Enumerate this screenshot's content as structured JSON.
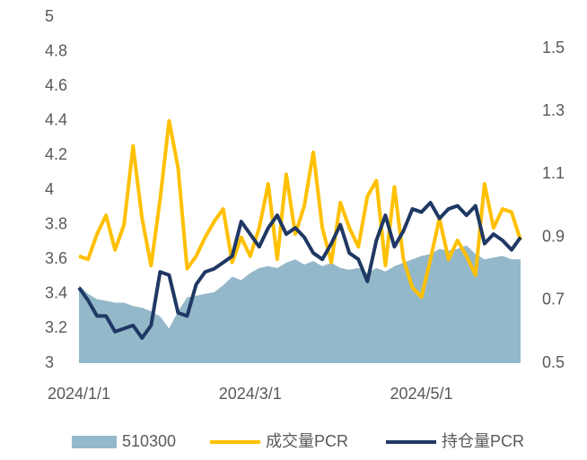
{
  "chart_data": {
    "type": "area-line",
    "categories": [
      "2024/1/1",
      null,
      null,
      null,
      null,
      null,
      null,
      null,
      null,
      null,
      null,
      null,
      null,
      null,
      null,
      null,
      null,
      null,
      null,
      "2024/3/1",
      null,
      null,
      null,
      null,
      null,
      null,
      null,
      null,
      null,
      null,
      null,
      null,
      null,
      null,
      null,
      null,
      null,
      null,
      "2024/5/1",
      null,
      null,
      null,
      null,
      null,
      null,
      null,
      null,
      null,
      null,
      null
    ],
    "ylim": [
      3,
      5
    ],
    "yticks": [
      3,
      3.2,
      3.4,
      3.6,
      3.8,
      4,
      4.2,
      4.4,
      4.6,
      4.8,
      5
    ],
    "y2lim": [
      0.5,
      1.6
    ],
    "y2ticks": [
      0.5,
      0.7,
      0.9,
      1.1,
      1.3,
      1.5
    ],
    "legend": "bottom",
    "series": [
      {
        "name": "510300",
        "type": "area",
        "color": "#93b8c9",
        "values": [
          3.45,
          3.4,
          3.37,
          3.36,
          3.35,
          3.35,
          3.33,
          3.32,
          3.3,
          3.27,
          3.2,
          3.3,
          3.38,
          3.39,
          3.4,
          3.41,
          3.45,
          3.5,
          3.48,
          3.52,
          3.55,
          3.56,
          3.55,
          3.58,
          3.6,
          3.57,
          3.59,
          3.56,
          3.58,
          3.55,
          3.54,
          3.55,
          3.52,
          3.55,
          3.53,
          3.56,
          3.58,
          3.6,
          3.62,
          3.63,
          3.66,
          3.65,
          3.66,
          3.68,
          3.63,
          3.6,
          3.61,
          3.62,
          3.6,
          3.6
        ]
      },
      {
        "name": "成交量PCR",
        "type": "line",
        "axis": "y2",
        "color": "#ffc000",
        "values": [
          0.84,
          0.83,
          0.91,
          0.97,
          0.86,
          0.94,
          1.19,
          0.96,
          0.81,
          1.02,
          1.27,
          1.12,
          0.8,
          0.84,
          0.9,
          0.95,
          0.99,
          0.82,
          0.9,
          0.84,
          0.93,
          1.07,
          0.83,
          1.1,
          0.91,
          1.0,
          1.17,
          0.93,
          0.82,
          1.01,
          0.93,
          0.87,
          1.03,
          1.08,
          0.81,
          1.06,
          0.83,
          0.74,
          0.71,
          0.83,
          0.96,
          0.83,
          0.89,
          0.84,
          0.78,
          1.07,
          0.93,
          0.99,
          0.98,
          0.89
        ]
      },
      {
        "name": "持仓量PCR",
        "type": "line",
        "axis": "y2",
        "color": "#1f3864",
        "values": [
          0.74,
          0.7,
          0.65,
          0.65,
          0.6,
          0.61,
          0.62,
          0.58,
          0.62,
          0.79,
          0.78,
          0.66,
          0.65,
          0.75,
          0.79,
          0.8,
          0.82,
          0.84,
          0.95,
          0.91,
          0.87,
          0.93,
          0.97,
          0.91,
          0.93,
          0.9,
          0.85,
          0.83,
          0.88,
          0.94,
          0.85,
          0.83,
          0.76,
          0.89,
          0.97,
          0.87,
          0.92,
          0.99,
          0.98,
          1.01,
          0.96,
          0.99,
          1.0,
          0.97,
          1.0,
          0.88,
          0.91,
          0.89,
          0.86,
          0.9
        ]
      }
    ]
  }
}
